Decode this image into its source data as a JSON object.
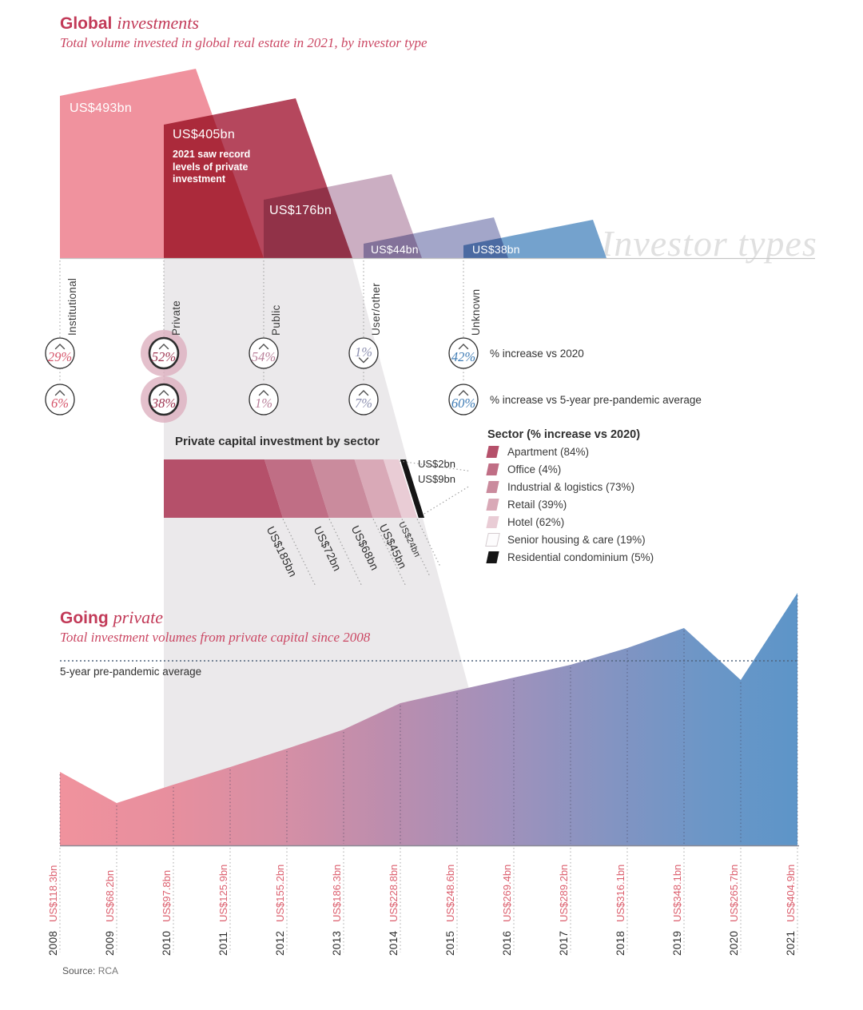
{
  "watermark": "Investor types",
  "source": {
    "label": "Source:",
    "value": "RCA"
  },
  "chart_data": [
    {
      "id": "investor-types",
      "type": "bar",
      "title_bold": "Global",
      "title_italic": "investments",
      "subtitle": "Total volume invested in global real estate in 2021, by investor type",
      "unit": "US$bn",
      "categories": [
        "Institutional",
        "Private",
        "Public",
        "User/other",
        "Unknown"
      ],
      "values": [
        493,
        405,
        176,
        44,
        38
      ],
      "value_labels": [
        "US$493bn",
        "US$405bn",
        "US$176bn",
        "US$44bn",
        "US$38bn"
      ],
      "colors": [
        "#ef8e9b",
        "#b34158",
        "#c9abc0",
        "#a0a3c7",
        "#6f9fcb"
      ],
      "annotation": "2021 saw record levels of private investment",
      "highlighted_category": "Private",
      "pct_colors": [
        "#d6556b",
        "#9e3350",
        "#b97f99",
        "#8d90b0",
        "#3f7cb5"
      ],
      "pct_rows": [
        {
          "label": "% increase vs 2020",
          "values": [
            "29%",
            "52%",
            "54%",
            "1%",
            "42%"
          ],
          "directions": [
            "up",
            "up",
            "up",
            "down",
            "up"
          ]
        },
        {
          "label": "% increase vs 5-year pre-pandemic average",
          "values": [
            "6%",
            "38%",
            "1%",
            "7%",
            "60%"
          ],
          "directions": [
            "up",
            "up",
            "up",
            "up",
            "up"
          ]
        }
      ]
    },
    {
      "id": "private-by-sector",
      "type": "bar",
      "title": "Private capital investment by sector",
      "legend_title": "Sector (% increase vs 2020)",
      "total_bn": 405,
      "segments": [
        {
          "label": "Apartment",
          "value_bn": 185,
          "value_label": "US$185bn",
          "pct_increase": "84%",
          "legend": "Apartment (84%)",
          "color": "#b5506a"
        },
        {
          "label": "Office",
          "value_bn": 72,
          "value_label": "US$72bn",
          "pct_increase": "4%",
          "legend": "Office (4%)",
          "color": "#c06e85"
        },
        {
          "label": "Industrial & logistics",
          "value_bn": 68,
          "value_label": "US$68bn",
          "pct_increase": "73%",
          "legend": "Industrial & logistics (73%)",
          "color": "#ca8b9d"
        },
        {
          "label": "Retail",
          "value_bn": 45,
          "value_label": "US$45bn",
          "pct_increase": "39%",
          "legend": "Retail (39%)",
          "color": "#d9a9b7"
        },
        {
          "label": "Hotel",
          "value_bn": 24,
          "value_label": "US$24bn",
          "pct_increase": "62%",
          "legend": "Hotel (62%)",
          "color": "#e9ccd5"
        },
        {
          "label": "Senior housing & care",
          "value_bn": 2,
          "value_label": "US$2bn",
          "pct_increase": "19%",
          "legend": "Senior housing & care (19%)",
          "color": "#fdfcfd"
        },
        {
          "label": "Residential condominium",
          "value_bn": 9,
          "value_label": "US$9bn",
          "pct_increase": "5%",
          "legend": "Residential condominium (5%)",
          "color": "#151515"
        }
      ]
    },
    {
      "id": "private-volumes",
      "type": "area",
      "title_bold": "Going",
      "title_italic": "private",
      "subtitle": "Total investment volumes from private capital since 2008",
      "avg_label": "5-year pre-pandemic average",
      "avg_value_bn": 294.3,
      "years": [
        "2008",
        "2009",
        "2010",
        "2011",
        "2012",
        "2013",
        "2014",
        "2015",
        "2016",
        "2017",
        "2018",
        "2019",
        "2020",
        "2021"
      ],
      "values": [
        118.3,
        68.2,
        97.8,
        125.9,
        155.2,
        186.3,
        228.8,
        248.6,
        269.4,
        289.2,
        316.1,
        348.1,
        265.7,
        404.9
      ],
      "value_labels": [
        "US$118.3bn",
        "US$68.2bn",
        "US$97.8bn",
        "US$125.9bn",
        "US$155.2bn",
        "US$186.3bn",
        "US$228.8bn",
        "US$248.6bn",
        "US$269.4bn",
        "US$289.2bn",
        "US$316.1bn",
        "US$348.1bn",
        "US$265.7bn",
        "US$404.9bn"
      ],
      "gradient": [
        "#f0929d",
        "#e78f9e",
        "#d68fa5",
        "#bb8dae",
        "#a191bb",
        "#8394c2",
        "#6b96c7",
        "#5d95c8"
      ]
    }
  ]
}
